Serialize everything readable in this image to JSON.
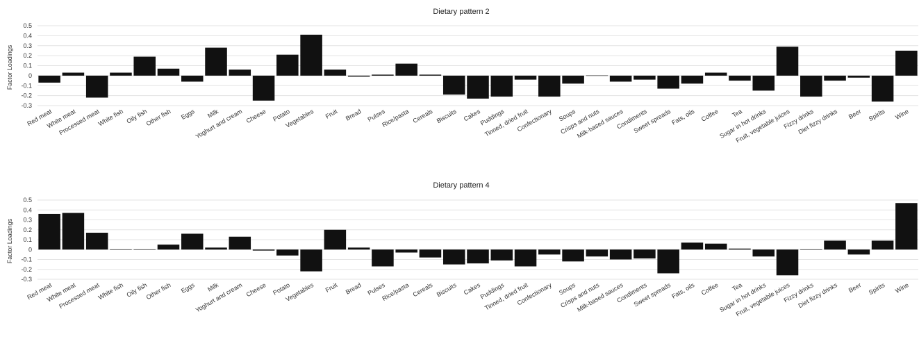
{
  "chart_data": [
    {
      "type": "bar",
      "title": "Dietary pattern 2",
      "ylabel": "Factor Loadings",
      "ylim": [
        -0.3,
        0.5
      ],
      "yticks": [
        "0.5",
        "0.4",
        "0.3",
        "0.2",
        "0.1",
        "0",
        "-0.1",
        "-0.2",
        "-0.3"
      ],
      "grid": true,
      "bar_color": "#111111",
      "categories": [
        "Red meat",
        "White meat",
        "Processed meat",
        "White fish",
        "Oily fish",
        "Other fish",
        "Eggs",
        "Milk",
        "Yoghurt and cream",
        "Cheese",
        "Potato",
        "Vegetables",
        "Fruit",
        "Bread",
        "Pulses",
        "Rice/pasta",
        "Cereals",
        "Biscuits",
        "Cakes",
        "Puddings",
        "Tinned, dried fruit",
        "Confectionary",
        "Soups",
        "Crisps and nuts",
        "Milk-based sauces",
        "Condiments",
        "Sweet spreads",
        "Fats, oils",
        "Coffee",
        "Tea",
        "Sugar in hot drinks",
        "Fruit, vegetable juices",
        "Fizzy drinks",
        "Diet fizzy drinks",
        "Beer",
        "Spirits",
        "Wine"
      ],
      "values": [
        -0.07,
        0.03,
        -0.22,
        0.03,
        0.19,
        0.07,
        -0.06,
        0.28,
        0.06,
        -0.25,
        0.21,
        0.41,
        0.06,
        -0.01,
        0.01,
        0.12,
        0.01,
        -0.19,
        -0.23,
        -0.21,
        -0.04,
        -0.21,
        -0.08,
        0.0,
        -0.06,
        -0.04,
        -0.13,
        -0.08,
        0.03,
        -0.05,
        -0.15,
        0.29,
        -0.21,
        -0.05,
        -0.02,
        -0.26,
        0.25
      ]
    },
    {
      "type": "bar",
      "title": "Dietary pattern 4",
      "ylabel": "Factor Loadings",
      "ylim": [
        -0.3,
        0.5
      ],
      "yticks": [
        "0.5",
        "0.4",
        "0.3",
        "0.2",
        "0.1",
        "0",
        "-0.1",
        "-0.2",
        "-0.3"
      ],
      "grid": true,
      "bar_color": "#111111",
      "categories": [
        "Red meat",
        "White meat",
        "Processed meat",
        "White fish",
        "Oily fish",
        "Other fish",
        "Eggs",
        "Milk",
        "Yoghurt and cream",
        "Cheese",
        "Potato",
        "Vegetables",
        "Fruit",
        "Bread",
        "Pulses",
        "Rice/pasta",
        "Cereals",
        "Biscuits",
        "Cakes",
        "Puddings",
        "Tinned, dried fruit",
        "Confectionary",
        "Soups",
        "Crisps and nuts",
        "Milk-based sauces",
        "Condiments",
        "Sweet spreads",
        "Fats, oils",
        "Coffee",
        "Tea",
        "Sugar in hot drinks",
        "Fruit, vegetable juices",
        "Fizzy drinks",
        "Diet fizzy drinks",
        "Beer",
        "Spirits",
        "Wine"
      ],
      "values": [
        0.36,
        0.37,
        0.17,
        0.0,
        0.0,
        0.05,
        0.16,
        0.02,
        0.13,
        -0.01,
        -0.06,
        -0.22,
        0.2,
        0.02,
        -0.17,
        -0.03,
        -0.08,
        -0.15,
        -0.14,
        -0.11,
        -0.17,
        -0.05,
        -0.12,
        -0.07,
        -0.1,
        -0.09,
        -0.24,
        0.07,
        0.06,
        0.01,
        -0.07,
        -0.26,
        0.0,
        0.09,
        -0.05,
        0.09,
        0.47
      ]
    }
  ]
}
